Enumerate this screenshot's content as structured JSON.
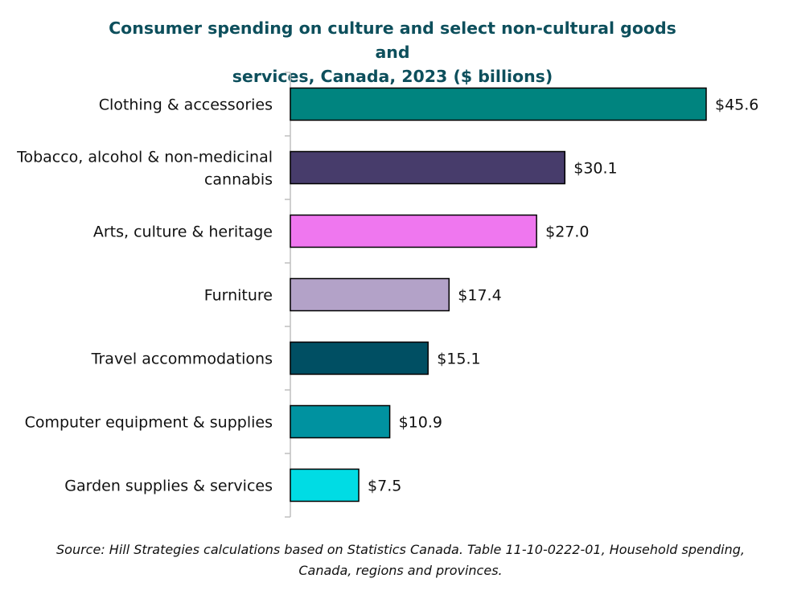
{
  "chart_data": {
    "type": "bar",
    "orientation": "horizontal",
    "title": "Consumer spending on culture and select non-cultural goods and services, Canada, 2023 ($ billions)",
    "title_lines": [
      "Consumer spending on culture and select non-cultural goods and",
      "services, Canada, 2023 ($ billions)"
    ],
    "categories": [
      "Clothing & accessories",
      "Tobacco, alcohol & non-medicinal cannabis",
      "Arts, culture & heritage",
      "Furniture",
      "Travel accommodations",
      "Computer equipment & supplies",
      "Garden supplies & services"
    ],
    "category_lines": [
      [
        "Clothing & accessories"
      ],
      [
        "Tobacco, alcohol & non-medicinal",
        "cannabis"
      ],
      [
        "Arts, culture & heritage"
      ],
      [
        "Furniture"
      ],
      [
        "Travel accommodations"
      ],
      [
        "Computer equipment & supplies"
      ],
      [
        "Garden supplies & services"
      ]
    ],
    "values": [
      45.6,
      30.1,
      27.0,
      17.4,
      15.1,
      10.9,
      7.5
    ],
    "value_labels": [
      "$45.6",
      "$30.1",
      "$27.0",
      "$17.4",
      "$15.1",
      "$10.9",
      "$7.5"
    ],
    "colors": [
      "#00847f",
      "#473c6b",
      "#ef77ef",
      "#b3a2c8",
      "#004f63",
      "#0092a0",
      "#00dce4"
    ],
    "xlim": [
      0,
      50
    ],
    "xlabel": "",
    "ylabel": "",
    "grid": false,
    "legend": "none",
    "source": "Source: Hill Strategies calculations based on Statistics Canada. Table 11-10-0222-01, Household spending, Canada, regions and provinces."
  }
}
